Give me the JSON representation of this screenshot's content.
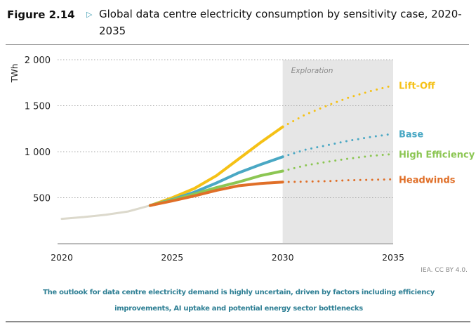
{
  "header": {
    "figure_label": "Figure 2.14",
    "marker_icon": "triangle-right-icon",
    "title": "Global data centre electricity consumption by sensitivity case, 2020-2035"
  },
  "chart_data": {
    "type": "line",
    "title": "Global data centre electricity consumption by sensitivity case, 2020-2035",
    "ylabel": "TWh",
    "xlabel": "",
    "xlim": [
      2020,
      2035
    ],
    "ylim": [
      0,
      2000
    ],
    "xticks": [
      "2020",
      "2025",
      "2030",
      "2035"
    ],
    "yticks": [
      {
        "value": 500,
        "label": "500"
      },
      {
        "value": 1000,
        "label": "1 000"
      },
      {
        "value": 1500,
        "label": "1 500"
      },
      {
        "value": 2000,
        "label": "2 000"
      }
    ],
    "grid": "horizontal dotted",
    "shaded_region": {
      "label": "Exploration",
      "from": 2030,
      "to": 2035
    },
    "history": {
      "name": "Historical",
      "color": "#dcd9cc",
      "x": [
        2020,
        2021,
        2022,
        2023,
        2024
      ],
      "values": [
        270,
        290,
        315,
        350,
        415
      ]
    },
    "series": [
      {
        "name": "Lift-Off",
        "color": "#f5c116",
        "x": [
          2024,
          2025,
          2026,
          2027,
          2028,
          2029,
          2030,
          2031,
          2032,
          2033,
          2034,
          2035
        ],
        "values": [
          415,
          500,
          600,
          740,
          920,
          1100,
          1270,
          1400,
          1500,
          1590,
          1660,
          1720
        ]
      },
      {
        "name": "Base",
        "color": "#4aa8c4",
        "x": [
          2024,
          2025,
          2026,
          2027,
          2028,
          2029,
          2030,
          2031,
          2032,
          2033,
          2034,
          2035
        ],
        "values": [
          415,
          480,
          560,
          660,
          770,
          860,
          945,
          1020,
          1070,
          1120,
          1160,
          1195
        ]
      },
      {
        "name": "High Efficiency",
        "color": "#8cc653",
        "x": [
          2024,
          2025,
          2026,
          2027,
          2028,
          2029,
          2030,
          2031,
          2032,
          2033,
          2034,
          2035
        ],
        "values": [
          415,
          475,
          540,
          610,
          670,
          740,
          790,
          850,
          890,
          925,
          955,
          975
        ]
      },
      {
        "name": "Headwinds",
        "color": "#e06f28",
        "x": [
          2024,
          2025,
          2026,
          2027,
          2028,
          2029,
          2030,
          2031,
          2032,
          2033,
          2034,
          2035
        ],
        "values": [
          415,
          465,
          520,
          580,
          630,
          655,
          670,
          675,
          680,
          690,
          695,
          700
        ]
      }
    ],
    "projection_start": 2030,
    "legend": "right, at line ends"
  },
  "footer": {
    "credit": "IEA. CC BY 4.0.",
    "note": "The outlook for data centre electricity demand is highly uncertain, driven by factors including efficiency improvements, AI uptake and potential energy sector bottlenecks"
  }
}
